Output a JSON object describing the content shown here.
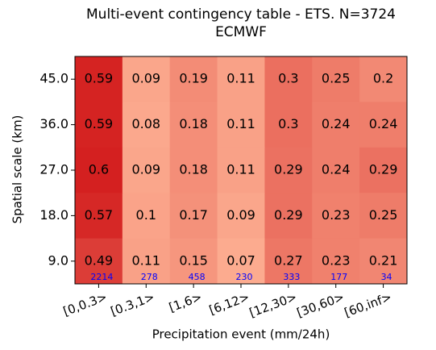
{
  "chart_data": {
    "type": "heatmap",
    "title": "Multi-event contingency table - ETS. N=3724",
    "subtitle": "ECMWF",
    "x_label": "Precipitation event (mm/24h)",
    "y_label": "Spatial scale (km)",
    "categories": [
      "[0,0.3>",
      "[0.3,1>",
      "[1,6>",
      "[6,12>",
      "[12,30>",
      "[30,60>",
      "[60,inf>"
    ],
    "y_categories": [
      "45.0",
      "36.0",
      "27.0",
      "18.0",
      "9.0"
    ],
    "values": [
      [
        0.59,
        0.09,
        0.19,
        0.11,
        0.3,
        0.25,
        0.2
      ],
      [
        0.59,
        0.08,
        0.18,
        0.11,
        0.3,
        0.24,
        0.24
      ],
      [
        0.6,
        0.09,
        0.18,
        0.11,
        0.29,
        0.24,
        0.29
      ],
      [
        0.57,
        0.1,
        0.17,
        0.09,
        0.29,
        0.23,
        0.25
      ],
      [
        0.49,
        0.11,
        0.15,
        0.07,
        0.27,
        0.23,
        0.21
      ]
    ],
    "counts": [
      2214,
      278,
      458,
      230,
      333,
      177,
      34
    ],
    "count_color": "#0000ff",
    "color_low": "#fcab8f",
    "color_high": "#d42020"
  }
}
